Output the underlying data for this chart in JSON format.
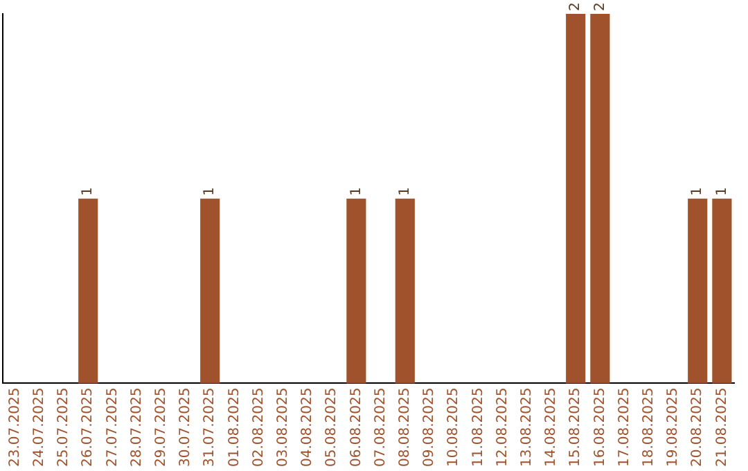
{
  "chart_data": {
    "type": "bar",
    "categories": [
      "23.07.2025",
      "24.07.2025",
      "25.07.2025",
      "26.07.2025",
      "27.07.2025",
      "28.07.2025",
      "29.07.2025",
      "30.07.2025",
      "31.07.2025",
      "01.08.2025",
      "02.08.2025",
      "03.08.2025",
      "04.08.2025",
      "05.08.2025",
      "06.08.2025",
      "07.08.2025",
      "08.08.2025",
      "09.08.2025",
      "10.08.2025",
      "11.08.2025",
      "12.08.2025",
      "13.08.2025",
      "14.08.2025",
      "15.08.2025",
      "16.08.2025",
      "17.08.2025",
      "18.08.2025",
      "19.08.2025",
      "20.08.2025",
      "21.08.2025"
    ],
    "values": [
      0,
      0,
      0,
      1,
      0,
      0,
      0,
      0,
      1,
      0,
      0,
      0,
      0,
      0,
      1,
      0,
      1,
      0,
      0,
      0,
      0,
      0,
      0,
      2,
      2,
      0,
      0,
      0,
      1,
      1
    ],
    "value_labels": [
      null,
      null,
      null,
      "1",
      null,
      null,
      null,
      null,
      "1",
      null,
      null,
      null,
      null,
      null,
      "1",
      null,
      "1",
      null,
      null,
      null,
      null,
      null,
      null,
      "2",
      "2",
      null,
      null,
      null,
      "1",
      "1"
    ],
    "color": "#a0522d",
    "tick_labels": "x",
    "grid": false,
    "legend": false
  }
}
